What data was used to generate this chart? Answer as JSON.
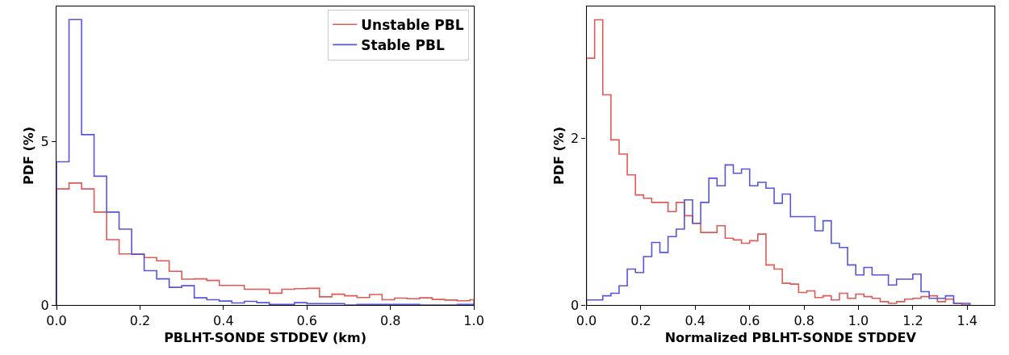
{
  "chart_data": [
    {
      "type": "histogram",
      "xlabel": "PBLHT-SONDE STDDEV (km)",
      "ylabel": "PDF (%)",
      "bins": [
        0,
        0.03,
        0.06,
        0.09,
        0.12,
        0.15,
        0.18,
        0.21,
        0.24,
        0.27,
        0.3,
        0.33,
        0.36,
        0.39,
        0.42,
        0.45,
        0.48,
        0.51,
        0.54,
        0.57,
        0.6,
        0.63,
        0.66,
        0.69,
        0.72,
        0.75,
        0.78,
        0.81,
        0.84,
        0.87,
        0.9,
        0.93,
        0.96,
        0.99,
        1.0
      ],
      "series": [
        {
          "name": "Unstable PBL",
          "color": "#e05a55",
          "values": [
            3.55,
            3.73,
            3.55,
            2.84,
            2.0,
            1.56,
            1.56,
            1.45,
            1.35,
            1.03,
            0.79,
            0.8,
            0.75,
            0.6,
            0.6,
            0.48,
            0.48,
            0.36,
            0.48,
            0.5,
            0.51,
            0.25,
            0.33,
            0.28,
            0.23,
            0.32,
            0.16,
            0.21,
            0.19,
            0.22,
            0.17,
            0.15,
            0.13,
            0.16
          ]
        },
        {
          "name": "Stable PBL",
          "color": "#5555e0",
          "values": [
            4.38,
            8.73,
            5.21,
            3.94,
            2.84,
            2.32,
            1.55,
            1.05,
            0.8,
            0.54,
            0.59,
            0.22,
            0.16,
            0.12,
            0.06,
            0.11,
            0.07,
            0.02,
            0.02,
            0.07,
            0.04,
            0.04,
            0.04,
            0,
            0.02,
            0.02,
            0.02,
            0.02,
            0.02,
            0,
            0,
            0,
            0.02,
            0.02
          ]
        }
      ],
      "xlim": [
        0,
        1.0
      ],
      "ylim": [
        0,
        9.13
      ],
      "xticks": [
        {
          "value": 0,
          "label": "0.0"
        },
        {
          "value": 0.2,
          "label": "0.2"
        },
        {
          "value": 0.4,
          "label": "0.4"
        },
        {
          "value": 0.6,
          "label": "0.6"
        },
        {
          "value": 0.8,
          "label": "0.8"
        },
        {
          "value": 1.0,
          "label": "1.0"
        }
      ],
      "yticks": [
        0,
        5
      ],
      "legend": "top right"
    },
    {
      "type": "histogram",
      "xlabel": "Normalized PBLHT-SONDE STDDEV",
      "ylabel": "PDF (%)",
      "bins": [
        0,
        0.03,
        0.06,
        0.09,
        0.12,
        0.15,
        0.18,
        0.21,
        0.24,
        0.27,
        0.3,
        0.33,
        0.36,
        0.39,
        0.42,
        0.45,
        0.48,
        0.51,
        0.54,
        0.57,
        0.6,
        0.63,
        0.66,
        0.69,
        0.72,
        0.75,
        0.78,
        0.81,
        0.84,
        0.87,
        0.9,
        0.93,
        0.96,
        0.99,
        1.02,
        1.05,
        1.08,
        1.11,
        1.14,
        1.17,
        1.2,
        1.23,
        1.26,
        1.29,
        1.32,
        1.35,
        1.38,
        1.41
      ],
      "series": [
        {
          "color": "#e05a55",
          "values": [
            2.96,
            3.42,
            2.52,
            1.98,
            1.81,
            1.56,
            1.32,
            1.28,
            1.23,
            1.23,
            1.12,
            1.23,
            1.07,
            0.98,
            0.87,
            0.87,
            0.95,
            0.8,
            0.78,
            0.74,
            0.77,
            0.85,
            0.48,
            0.43,
            0.26,
            0.25,
            0.15,
            0.17,
            0.09,
            0.11,
            0.06,
            0.14,
            0.08,
            0.13,
            0.1,
            0.08,
            0.04,
            0.02,
            0.04,
            0.07,
            0.08,
            0.1,
            0.11,
            0.04,
            0.07,
            0.02,
            0
          ]
        },
        {
          "color": "#5555e0",
          "values": [
            0.06,
            0.06,
            0.11,
            0.14,
            0.23,
            0.43,
            0.39,
            0.58,
            0.75,
            0.63,
            0.82,
            0.91,
            1.26,
            0.98,
            1.23,
            1.52,
            1.43,
            1.68,
            1.58,
            1.63,
            1.43,
            1.47,
            1.4,
            1.22,
            1.33,
            1.06,
            1.06,
            1.06,
            0.89,
            1.01,
            0.74,
            0.69,
            0.48,
            0.36,
            0.45,
            0.36,
            0.36,
            0.24,
            0.31,
            0.31,
            0.37,
            0.16,
            0.08,
            0.08,
            0.11,
            0.02,
            0.02
          ]
        }
      ],
      "xlim": [
        0,
        1.5
      ],
      "ylim": [
        0,
        3.58
      ],
      "xticks": [
        {
          "value": 0,
          "label": "0.0"
        },
        {
          "value": 0.2,
          "label": "0.2"
        },
        {
          "value": 0.4,
          "label": "0.4"
        },
        {
          "value": 0.6,
          "label": "0.6"
        },
        {
          "value": 0.8,
          "label": "0.8"
        },
        {
          "value": 1.0,
          "label": "1.0"
        },
        {
          "value": 1.2,
          "label": "1.2"
        },
        {
          "value": 1.4,
          "label": "1.4"
        }
      ],
      "yticks": [
        0,
        2
      ]
    }
  ]
}
